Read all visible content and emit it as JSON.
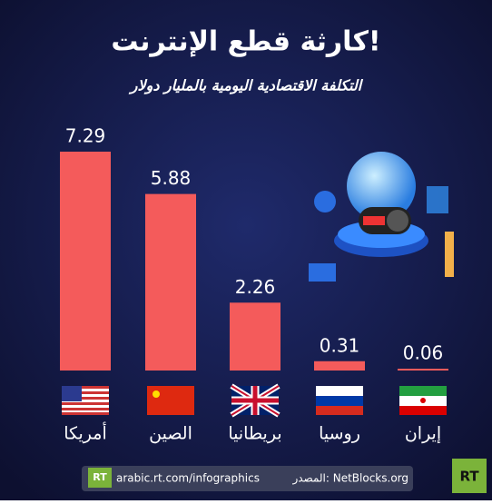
{
  "chart_data": {
    "type": "bar",
    "title": "كارثة قطع الإنترنت!",
    "subtitle": "التكلفة الاقتصادية اليومية بالمليار دولار",
    "categories": [
      "أمريكا",
      "الصين",
      "بريطانيا",
      "روسيا",
      "إيران"
    ],
    "values": [
      7.29,
      5.88,
      2.26,
      0.31,
      0.06
    ],
    "color": "#f45b5b"
  },
  "footer": {
    "url": "arabic.rt.com/infographics",
    "source": "المصدر: NetBlocks.org",
    "logo": "RT"
  }
}
